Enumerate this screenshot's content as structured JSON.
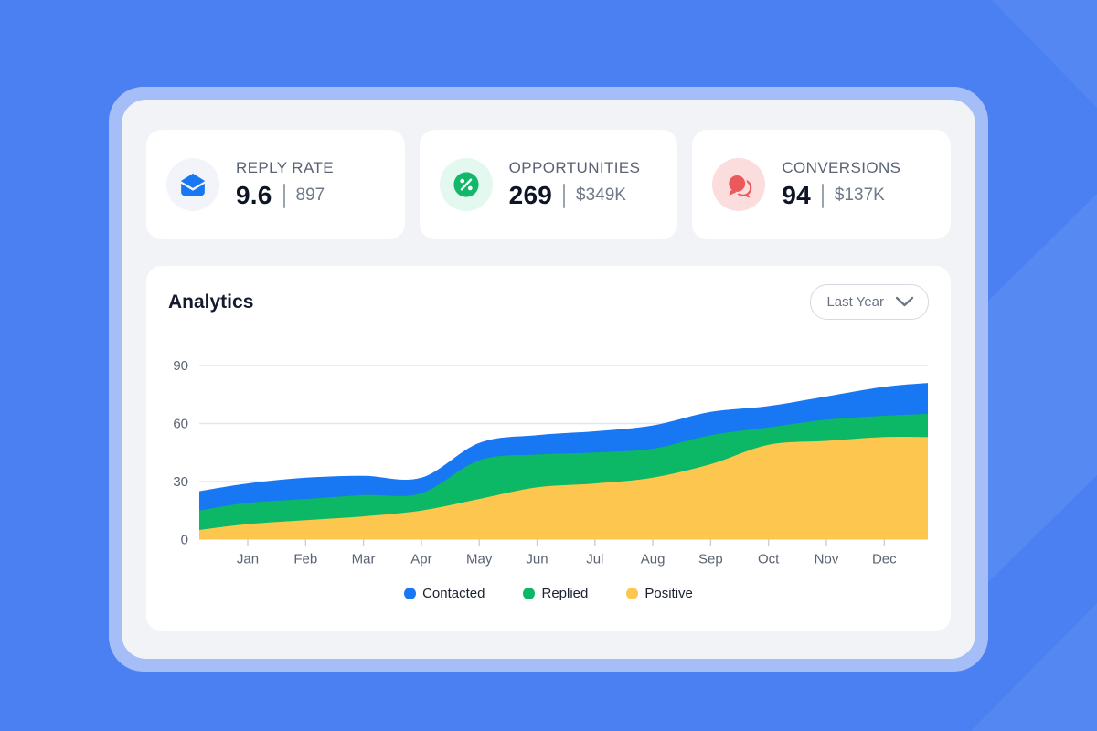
{
  "stats": [
    {
      "label": "REPLY RATE",
      "value": "9.6",
      "secondary": "897",
      "icon": "envelope-icon",
      "accent": "#1877F2",
      "icon_bg": "#F2F4F9"
    },
    {
      "label": "OPPORTUNITIES",
      "value": "269",
      "secondary": "$349K",
      "icon": "percent-icon",
      "accent": "#12B76A",
      "icon_bg": "#E3F8EE"
    },
    {
      "label": "CONVERSIONS",
      "value": "94",
      "secondary": "$137K",
      "icon": "chat-icon",
      "accent": "#EA5A5C",
      "icon_bg": "#FBDDDD"
    }
  ],
  "analytics": {
    "title": "Analytics",
    "range_selector": {
      "value": "Last Year",
      "icon": "chevron-down-icon"
    }
  },
  "chart_data": {
    "type": "area",
    "stacked": true,
    "title": "Analytics",
    "categories": [
      "Jan",
      "Feb",
      "Mar",
      "Apr",
      "May",
      "Jun",
      "Jul",
      "Aug",
      "Sep",
      "Oct",
      "Nov",
      "Dec"
    ],
    "series": [
      {
        "name": "Contacted",
        "color": "#1877F2",
        "values": [
          10,
          11,
          10,
          8,
          9,
          10,
          11,
          12,
          12,
          11,
          12,
          15
        ]
      },
      {
        "name": "Replied",
        "color": "#0CB765",
        "values": [
          11,
          11,
          11,
          9,
          20,
          17,
          16,
          15,
          15,
          9,
          11,
          11
        ]
      },
      {
        "name": "Positive",
        "color": "#FDC64F",
        "values": [
          8,
          10,
          12,
          15,
          21,
          27,
          29,
          32,
          39,
          49,
          51,
          53
        ]
      }
    ],
    "stack_order_bottom_up": [
      "Positive",
      "Replied",
      "Contacted"
    ],
    "edge_start": {
      "Contacted": 10,
      "Replied": 10,
      "Positive": 5
    },
    "edge_end": {
      "Contacted": 16,
      "Replied": 12,
      "Positive": 53
    },
    "y_ticks": [
      0,
      30,
      60,
      90
    ],
    "ylim": [
      0,
      90
    ],
    "grid": true,
    "legend_position": "bottom"
  },
  "colors": {
    "background": "#4A80F2",
    "background_overlay": "rgba(255,255,255,0.06)",
    "panel_frame": "#A6BEF8",
    "panel": "#F1F3F7",
    "card": "#FFFFFF",
    "title_text": "#151A2D",
    "label_text": "#5A6373",
    "value_text": "#0D1426",
    "secondary_text": "#6F7987",
    "grid_line": "#E5E7EB",
    "axis_text": "#5A6372",
    "tick_line": "#CBCFD6",
    "dropdown_border": "#D5D9E0",
    "dropdown_text": "#6A7484"
  }
}
